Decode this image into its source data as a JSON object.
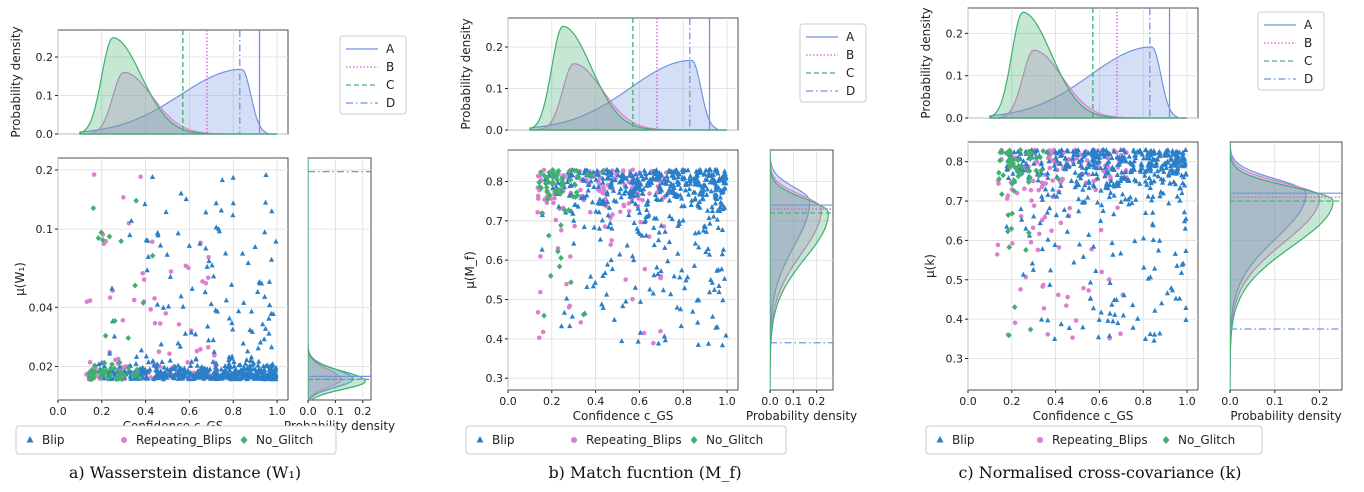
{
  "colors": {
    "Blip": "#2a7fc8",
    "Repeating_Blips": "#dc7fd0",
    "No_Glitch": "#3fb070",
    "A": "#6f95e0",
    "B": "#d05cd0",
    "C": "#3fb070",
    "D": "#6f95e0"
  },
  "line_legend": [
    {
      "key": "A",
      "label": "A",
      "dash": ""
    },
    {
      "key": "B",
      "label": "B",
      "dash": "1.5,2"
    },
    {
      "key": "C",
      "label": "C",
      "dash": "5,3"
    },
    {
      "key": "D",
      "label": "D",
      "dash": "7,3,1.5,3"
    }
  ],
  "scatter_legend": [
    {
      "key": "Blip",
      "label": "Blip",
      "marker": "triangle"
    },
    {
      "key": "Repeating_Blips",
      "label": "Repeating_Blips",
      "marker": "circle"
    },
    {
      "key": "No_Glitch",
      "label": "No_Glitch",
      "marker": "diamond"
    }
  ],
  "chart_data": [
    {
      "type": "scatter",
      "caption": "a) Wasserstein distance (W₁)",
      "xlabel": "Confidence c_GS",
      "ylabel": "μ(W₁)",
      "top_ylabel": "Probability density",
      "right_xlabel": "Probability density",
      "xlim": [
        0,
        1.05
      ],
      "xticks": [
        0.0,
        0.2,
        0.4,
        0.6,
        0.8,
        1.0
      ],
      "top_ylim": [
        0,
        0.27
      ],
      "top_yticks": [
        0.0,
        0.1,
        0.2
      ],
      "ylim": [
        0.0135,
        0.23
      ],
      "yscale": "log",
      "yticks": [
        0.02,
        0.04,
        0.1,
        0.2
      ],
      "ytick_labels": [
        "0.02",
        "0.04",
        "0.1",
        "0.2"
      ],
      "right_xlim": [
        0,
        0.23
      ],
      "right_xticks": [
        0.0,
        0.1,
        0.2
      ],
      "x_vlines": {
        "A": 0.92,
        "B": 0.68,
        "C": 0.57,
        "D": 0.83
      },
      "y_hlines": {
        "A": 0.0178,
        "B": 0.0172,
        "C": 0.0172,
        "D": 0.196
      },
      "kde_x": {
        "Blip": {
          "peak": 0.84,
          "height": 0.168,
          "shape": "left-skew"
        },
        "Repeating_Blips": {
          "peak": 0.3,
          "height": 0.16,
          "shape": "right-skew"
        },
        "No_Glitch": {
          "peak": 0.25,
          "height": 0.25,
          "shape": "right-skew"
        }
      },
      "kde_y": {
        "Blip": {
          "peak": 0.0172,
          "height": 0.165
        },
        "Repeating_Blips": {
          "peak": 0.0172,
          "height": 0.12
        },
        "No_Glitch": {
          "peak": 0.0168,
          "height": 0.21
        }
      }
    },
    {
      "type": "scatter",
      "caption": "b) Match fucntion (M_f)",
      "xlabel": "Confidence c_GS",
      "ylabel": "μ(M_f)",
      "top_ylabel": "Probability density",
      "right_xlabel": "Probability density",
      "xlim": [
        0,
        1.05
      ],
      "xticks": [
        0.0,
        0.2,
        0.4,
        0.6,
        0.8,
        1.0
      ],
      "top_ylim": [
        0,
        0.27
      ],
      "top_yticks": [
        0.0,
        0.1,
        0.2
      ],
      "ylim": [
        0.27,
        0.88
      ],
      "yscale": "linear",
      "yticks": [
        0.3,
        0.4,
        0.5,
        0.6,
        0.7,
        0.8
      ],
      "ytick_labels": [
        "0.3",
        "0.4",
        "0.5",
        "0.6",
        "0.7",
        "0.8"
      ],
      "right_xlim": [
        0,
        0.27
      ],
      "right_xticks": [
        0.0,
        0.1,
        0.2
      ],
      "x_vlines": {
        "A": 0.92,
        "B": 0.68,
        "C": 0.57,
        "D": 0.83
      },
      "y_hlines": {
        "A": 0.74,
        "B": 0.73,
        "C": 0.72,
        "D": 0.39
      },
      "kde_x": {
        "Blip": {
          "peak": 0.84,
          "height": 0.168,
          "shape": "left-skew"
        },
        "Repeating_Blips": {
          "peak": 0.3,
          "height": 0.16,
          "shape": "right-skew"
        },
        "No_Glitch": {
          "peak": 0.25,
          "height": 0.25,
          "shape": "right-skew"
        }
      },
      "kde_y": {
        "Blip": {
          "peak": 0.75,
          "height": 0.17
        },
        "Repeating_Blips": {
          "peak": 0.73,
          "height": 0.22
        },
        "No_Glitch": {
          "peak": 0.72,
          "height": 0.25
        }
      }
    },
    {
      "type": "scatter",
      "caption": "c) Normalised cross-covariance (k)",
      "xlabel": "Confidence c_GS",
      "ylabel": "μ(k)",
      "top_ylabel": "Probability density",
      "right_xlabel": "Probability density",
      "xlim": [
        0,
        1.05
      ],
      "xticks": [
        0.0,
        0.2,
        0.4,
        0.6,
        0.8,
        1.0
      ],
      "top_ylim": [
        0,
        0.26
      ],
      "top_yticks": [
        0.0,
        0.1,
        0.2
      ],
      "ylim": [
        0.22,
        0.85
      ],
      "yscale": "linear",
      "yticks": [
        0.3,
        0.4,
        0.5,
        0.6,
        0.7,
        0.8
      ],
      "ytick_labels": [
        "0.3",
        "0.4",
        "0.5",
        "0.6",
        "0.7",
        "0.8"
      ],
      "right_xlim": [
        0,
        0.25
      ],
      "right_xticks": [
        0.0,
        0.1,
        0.2
      ],
      "x_vlines": {
        "A": 0.92,
        "B": 0.68,
        "C": 0.57,
        "D": 0.83
      },
      "y_hlines": {
        "A": 0.72,
        "B": 0.71,
        "C": 0.7,
        "D": 0.375
      },
      "kde_x": {
        "Blip": {
          "peak": 0.84,
          "height": 0.168,
          "shape": "left-skew"
        },
        "Repeating_Blips": {
          "peak": 0.3,
          "height": 0.16,
          "shape": "right-skew"
        },
        "No_Glitch": {
          "peak": 0.25,
          "height": 0.25,
          "shape": "right-skew"
        }
      },
      "kde_y": {
        "Blip": {
          "peak": 0.72,
          "height": 0.17
        },
        "Repeating_Blips": {
          "peak": 0.71,
          "height": 0.2
        },
        "No_Glitch": {
          "peak": 0.7,
          "height": 0.23
        }
      }
    }
  ]
}
